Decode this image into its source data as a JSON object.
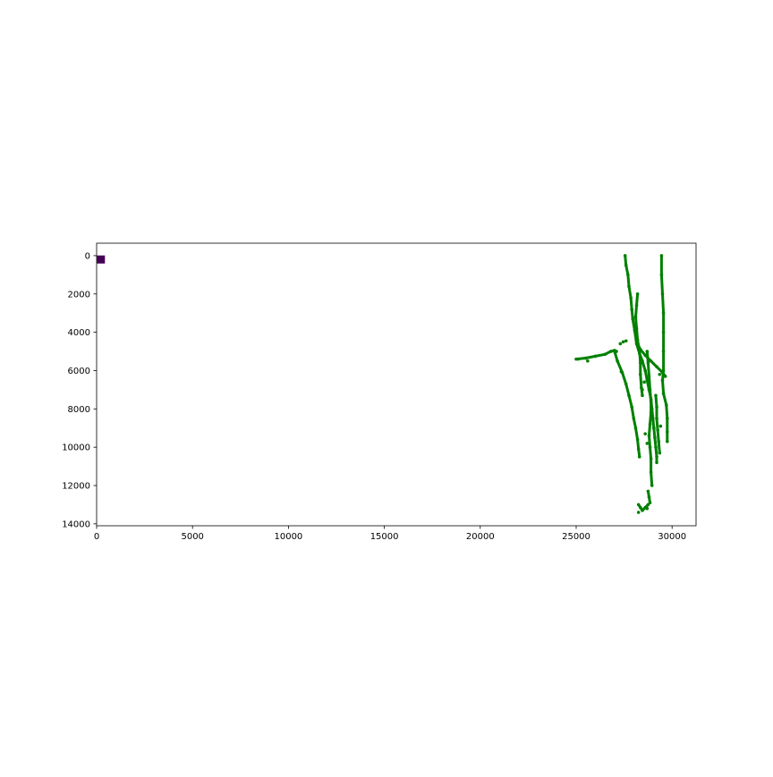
{
  "chart_data": {
    "type": "scatter",
    "title": "",
    "xlabel": "",
    "ylabel": "",
    "xlim": [
      0,
      31250
    ],
    "ylim": [
      14100,
      -650
    ],
    "y_inverted": true,
    "grid": false,
    "x_ticks": [
      {
        "value": 0,
        "label": "0"
      },
      {
        "value": 5000,
        "label": "5000"
      },
      {
        "value": 10000,
        "label": "10000"
      },
      {
        "value": 15000,
        "label": "15000"
      },
      {
        "value": 20000,
        "label": "20000"
      },
      {
        "value": 25000,
        "label": "25000"
      },
      {
        "value": 30000,
        "label": "30000"
      }
    ],
    "y_ticks": [
      {
        "value": 0,
        "label": "0"
      },
      {
        "value": 2000,
        "label": "2000"
      },
      {
        "value": 4000,
        "label": "4000"
      },
      {
        "value": 6000,
        "label": "6000"
      },
      {
        "value": 8000,
        "label": "8000"
      },
      {
        "value": 10000,
        "label": "10000"
      },
      {
        "value": 12000,
        "label": "12000"
      },
      {
        "value": 14000,
        "label": "14000"
      }
    ],
    "marker": {
      "x": 200,
      "y": 200,
      "color": "#440154"
    },
    "series": [
      {
        "color": "#008000",
        "segments": [
          [
            [
              27550,
              0
            ],
            [
              27600,
              500
            ],
            [
              27700,
              1000
            ],
            [
              27750,
              1600
            ],
            [
              27850,
              2200
            ],
            [
              27900,
              2800
            ],
            [
              27950,
              3300
            ],
            [
              28050,
              3900
            ],
            [
              28150,
              4600
            ],
            [
              28300,
              5100
            ],
            [
              28450,
              5500
            ],
            [
              28600,
              6000
            ],
            [
              28700,
              6500
            ],
            [
              28800,
              7000
            ],
            [
              28900,
              7500
            ],
            [
              28950,
              8000
            ],
            [
              29000,
              8500
            ],
            [
              29050,
              9000
            ],
            [
              29100,
              9500
            ],
            [
              29150,
              10000
            ],
            [
              29200,
              10500
            ],
            [
              29200,
              10800
            ]
          ],
          [
            [
              29450,
              0
            ],
            [
              29450,
              1000
            ],
            [
              29500,
              2000
            ],
            [
              29550,
              3000
            ],
            [
              29550,
              4000
            ],
            [
              29550,
              5000
            ],
            [
              29550,
              6000
            ],
            [
              29500,
              6500
            ],
            [
              29550,
              7200
            ],
            [
              29700,
              7800
            ],
            [
              29750,
              8500
            ],
            [
              29750,
              9200
            ],
            [
              29750,
              9700
            ]
          ],
          [
            [
              25000,
              5400
            ],
            [
              25500,
              5350
            ],
            [
              26000,
              5250
            ],
            [
              26500,
              5150
            ],
            [
              26800,
              5000
            ],
            [
              27000,
              4950
            ],
            [
              27100,
              5000
            ]
          ],
          [
            [
              27000,
              5000
            ],
            [
              27150,
              5500
            ],
            [
              27400,
              6100
            ],
            [
              27600,
              6700
            ],
            [
              27750,
              7300
            ],
            [
              27900,
              7900
            ],
            [
              28000,
              8500
            ],
            [
              28100,
              9000
            ],
            [
              28200,
              9600
            ],
            [
              28250,
              10100
            ],
            [
              28300,
              10500
            ]
          ],
          [
            [
              28200,
              4600
            ],
            [
              28350,
              4900
            ],
            [
              28600,
              5200
            ],
            [
              28900,
              5500
            ],
            [
              29200,
              5800
            ],
            [
              29500,
              6100
            ],
            [
              29650,
              6300
            ]
          ],
          [
            [
              28200,
              2000
            ],
            [
              28150,
              2600
            ],
            [
              28100,
              3200
            ],
            [
              28150,
              3800
            ],
            [
              28200,
              4400
            ],
            [
              28300,
              5000
            ],
            [
              28350,
              5600
            ],
            [
              28350,
              6200
            ],
            [
              28400,
              6900
            ],
            [
              28450,
              7300
            ]
          ],
          [
            [
              28700,
              5000
            ],
            [
              28750,
              5600
            ],
            [
              28800,
              6300
            ],
            [
              28850,
              7000
            ],
            [
              28900,
              7600
            ],
            [
              28900,
              8200
            ],
            [
              28850,
              8800
            ],
            [
              28800,
              9400
            ],
            [
              28850,
              10000
            ],
            [
              28900,
              10600
            ],
            [
              28900,
              11300
            ],
            [
              28950,
              12000
            ]
          ],
          [
            [
              29150,
              7300
            ],
            [
              29200,
              7900
            ],
            [
              29200,
              8500
            ],
            [
              29250,
              9100
            ],
            [
              29300,
              9700
            ],
            [
              29350,
              10300
            ]
          ],
          [
            [
              28750,
              12300
            ],
            [
              28800,
              12600
            ],
            [
              28850,
              12900
            ]
          ],
          [
            [
              28250,
              13000
            ],
            [
              28350,
              13150
            ],
            [
              28450,
              13300
            ],
            [
              28600,
              13150
            ],
            [
              28750,
              13000
            ]
          ]
        ],
        "points": [
          [
            27450,
            4500
          ],
          [
            27600,
            4450
          ],
          [
            27300,
            4600
          ],
          [
            25600,
            5500
          ],
          [
            25100,
            5400
          ],
          [
            27350,
            6050
          ],
          [
            28550,
            6600
          ],
          [
            28450,
            7000
          ],
          [
            29350,
            6200
          ],
          [
            28600,
            9300
          ],
          [
            28700,
            9800
          ],
          [
            29050,
            9000
          ],
          [
            29400,
            8900
          ],
          [
            28250,
            13400
          ],
          [
            28700,
            13200
          ]
        ]
      }
    ]
  }
}
